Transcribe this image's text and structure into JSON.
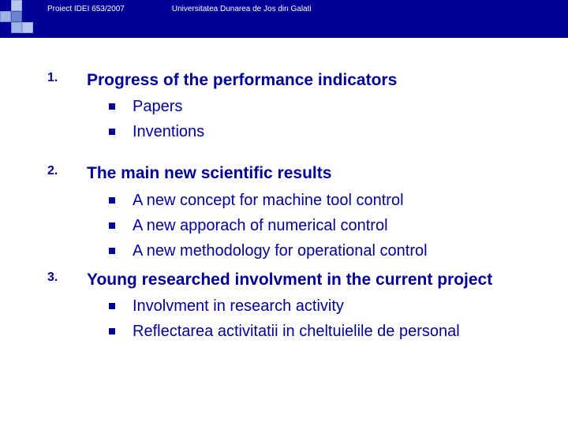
{
  "header": {
    "left_text": "Proiect IDEI 653/2007",
    "right_text": "Universitatea Dunarea de Jos din Galati",
    "bg_color": "#000099",
    "text_color": "#ffffff"
  },
  "colors": {
    "text_color": "#000099",
    "bullet_color": "#000099",
    "background": "#ffffff"
  },
  "typography": {
    "title_fontsize": 21,
    "number_fontsize": 16,
    "subitem_fontsize": 20,
    "header_fontsize": 10
  },
  "sections": [
    {
      "number": "1.",
      "title": "Progress of the performance indicators",
      "subs": [
        "Papers",
        "Inventions"
      ]
    },
    {
      "number": "2.",
      "title": "The main new scientific results",
      "subs": [
        "A new concept for machine tool control",
        "A new apporach of numerical control",
        "A new methodology for operational control"
      ]
    },
    {
      "number": "3.",
      "title": "Young researched involvment in the current project",
      "subs": [
        "Involvment in research activity",
        "Reflectarea activitatii in cheltuielile de personal"
      ]
    }
  ]
}
